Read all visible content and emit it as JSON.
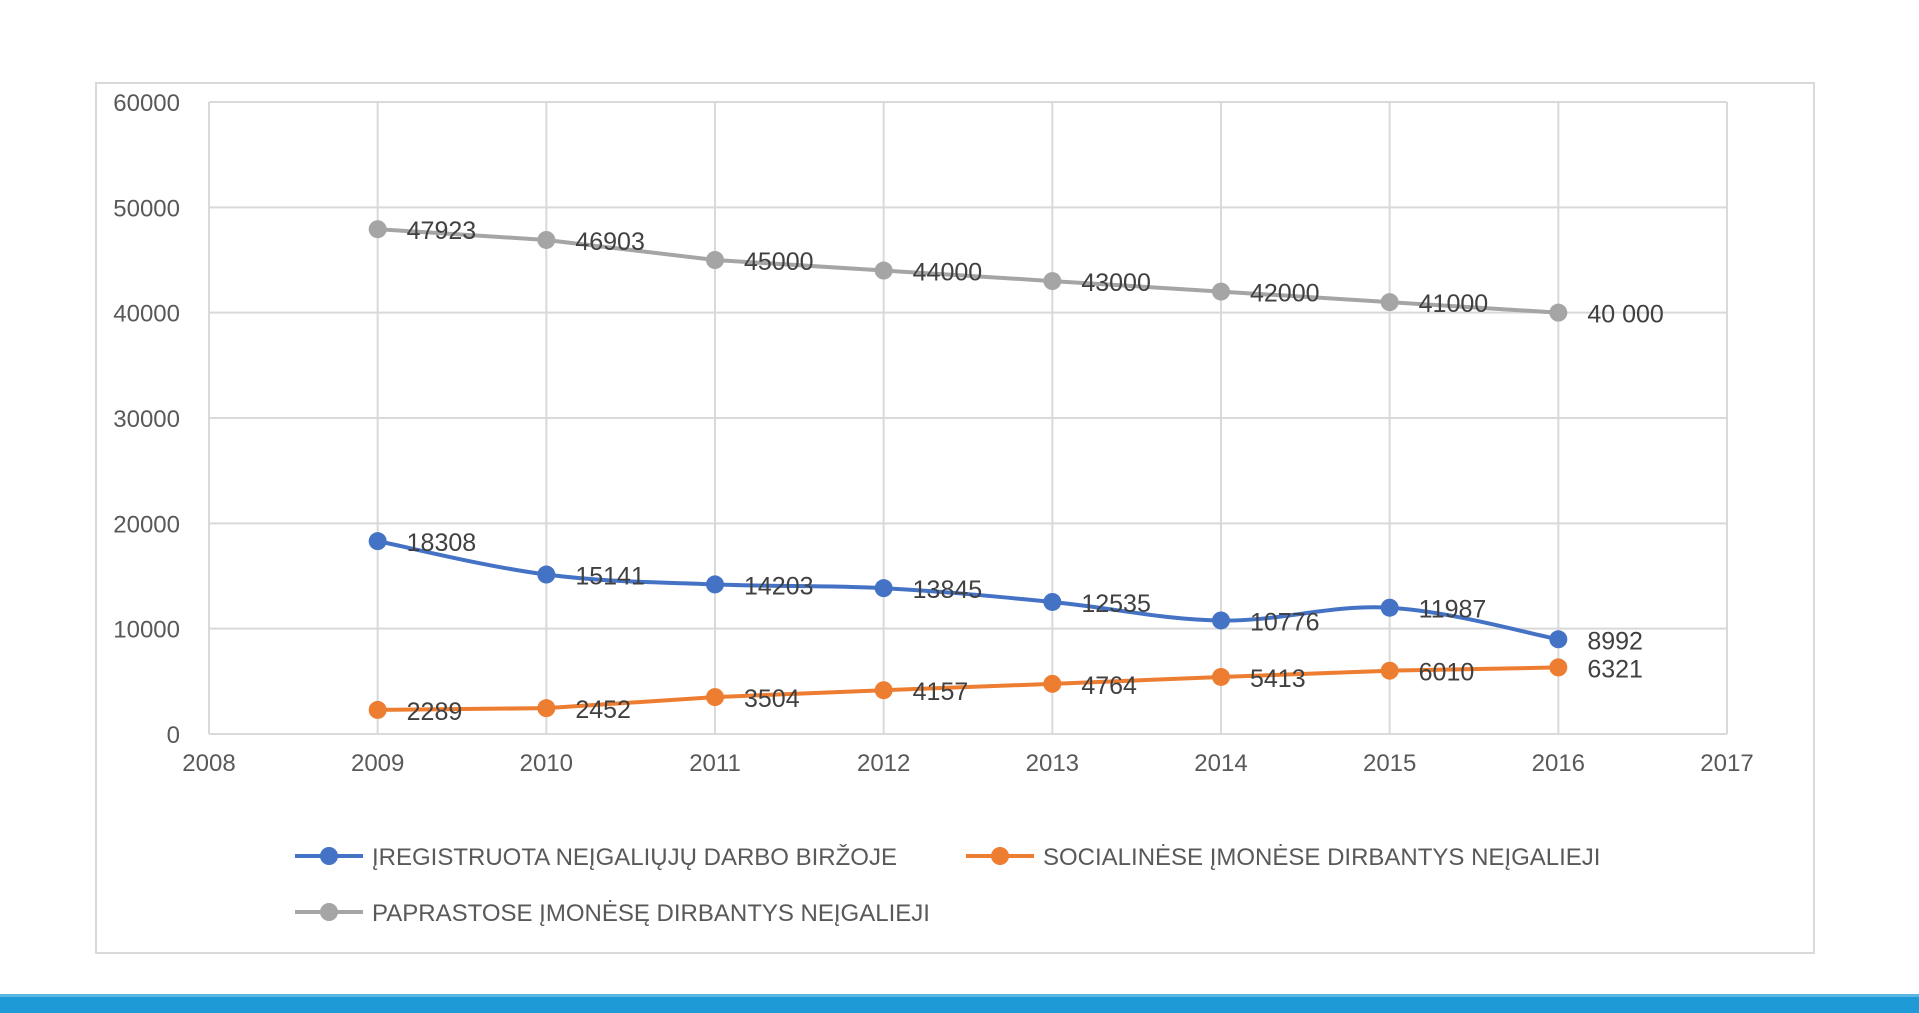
{
  "chart_data": {
    "type": "line",
    "title": "",
    "xlabel": "",
    "ylabel": "",
    "xlim": [
      2008,
      2017
    ],
    "ylim": [
      0,
      60000
    ],
    "x_ticks": [
      "2008",
      "2009",
      "2010",
      "2011",
      "2012",
      "2013",
      "2014",
      "2015",
      "2016",
      "2017"
    ],
    "y_ticks": [
      "0",
      "10000",
      "20000",
      "30000",
      "40000",
      "50000",
      "60000"
    ],
    "grid": true,
    "legend_position": "bottom",
    "x": [
      2009,
      2010,
      2011,
      2012,
      2013,
      2014,
      2015,
      2016
    ],
    "series": [
      {
        "name": "ĮREGISTRUOTA NEĮGALIŲJŲ DARBO BIRŽOJE",
        "color": "#4472c4",
        "smooth": true,
        "values": [
          18308,
          15141,
          14203,
          13845,
          12535,
          10776,
          11987,
          8992
        ],
        "labels": [
          "18308",
          "15141",
          "14203",
          "13845",
          "12535",
          "10776",
          "11987",
          "8992"
        ]
      },
      {
        "name": "SOCIALINĖSE ĮMONĖSE DIRBANTYS NEĮGALIEJI",
        "color": "#ed7d31",
        "smooth": false,
        "values": [
          2289,
          2452,
          3504,
          4157,
          4764,
          5413,
          6010,
          6321
        ],
        "labels": [
          "2289",
          "2452",
          "3504",
          "4157",
          "4764",
          "5413",
          "6010",
          "6321"
        ]
      },
      {
        "name": "PAPRASTOSE ĮMONĖSĘ DIRBANTYS NEĮGALIEJI",
        "color": "#a5a5a5",
        "smooth": false,
        "values": [
          47923,
          46903,
          45000,
          44000,
          43000,
          42000,
          41000,
          40000
        ],
        "labels": [
          "47923",
          "46903",
          "45000",
          "44000",
          "43000",
          "42000",
          "41000",
          "40 000"
        ]
      }
    ]
  },
  "colors": {
    "grid": "#d9d9d9",
    "axis_text": "#595959",
    "label_text": "#404040",
    "frame_border": "#d9d9d9",
    "footer_bar": "#1e9bd7"
  }
}
